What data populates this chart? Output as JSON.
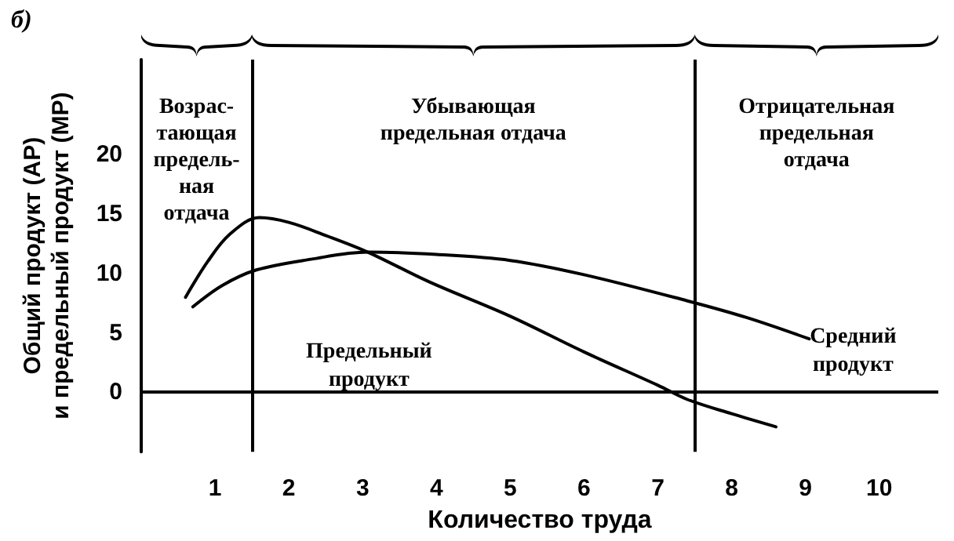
{
  "chart_data": {
    "type": "line",
    "title": "б)",
    "xlabel": "Количество труда",
    "ylabel": "Общий продукт (AP)\nи предельный продукт (MP)",
    "xlim": [
      0,
      10.8
    ],
    "xticks": [
      1,
      2,
      3,
      4,
      5,
      6,
      7,
      8,
      9,
      10
    ],
    "ylim": [
      -5,
      28
    ],
    "yticks": [
      0,
      5,
      10,
      15,
      20
    ],
    "grid": false,
    "legend": false,
    "marker": "none",
    "line_style": "solid",
    "series": [
      {
        "name": "Предельный продукт",
        "color": "#000000",
        "x": [
          0.6,
          0.9,
          1.2,
          1.6,
          2.0,
          2.5,
          3.07,
          3.9,
          5.0,
          6.0,
          7.0,
          7.4,
          8.0,
          8.6
        ],
        "values": [
          8,
          11,
          13.3,
          14.7,
          14.3,
          13.2,
          11.8,
          9.3,
          6.4,
          3.4,
          0.6,
          -0.6,
          -1.8,
          -2.9
        ]
      },
      {
        "name": "Средний продукт",
        "color": "#000000",
        "x": [
          0.7,
          1.1,
          1.56,
          2.3,
          3.07,
          4.0,
          5.0,
          6.0,
          7.4,
          8.2,
          9.05
        ],
        "values": [
          7.2,
          9.0,
          10.3,
          11.2,
          11.8,
          11.6,
          11.1,
          9.9,
          7.7,
          6.3,
          4.5
        ]
      }
    ],
    "ref_lines": [
      {
        "axis": "y",
        "value": 0,
        "color": "#000000"
      },
      {
        "axis": "x",
        "value": 1.5,
        "color": "#000000"
      },
      {
        "axis": "x",
        "value": 7.5,
        "color": "#000000"
      }
    ],
    "annotations": [
      "Возрас-\nтающая\nпредель-\nная\nотдача",
      "Убывающая\nпредельная отдача",
      "Отрицательная\nпредельная\nотдача"
    ]
  }
}
